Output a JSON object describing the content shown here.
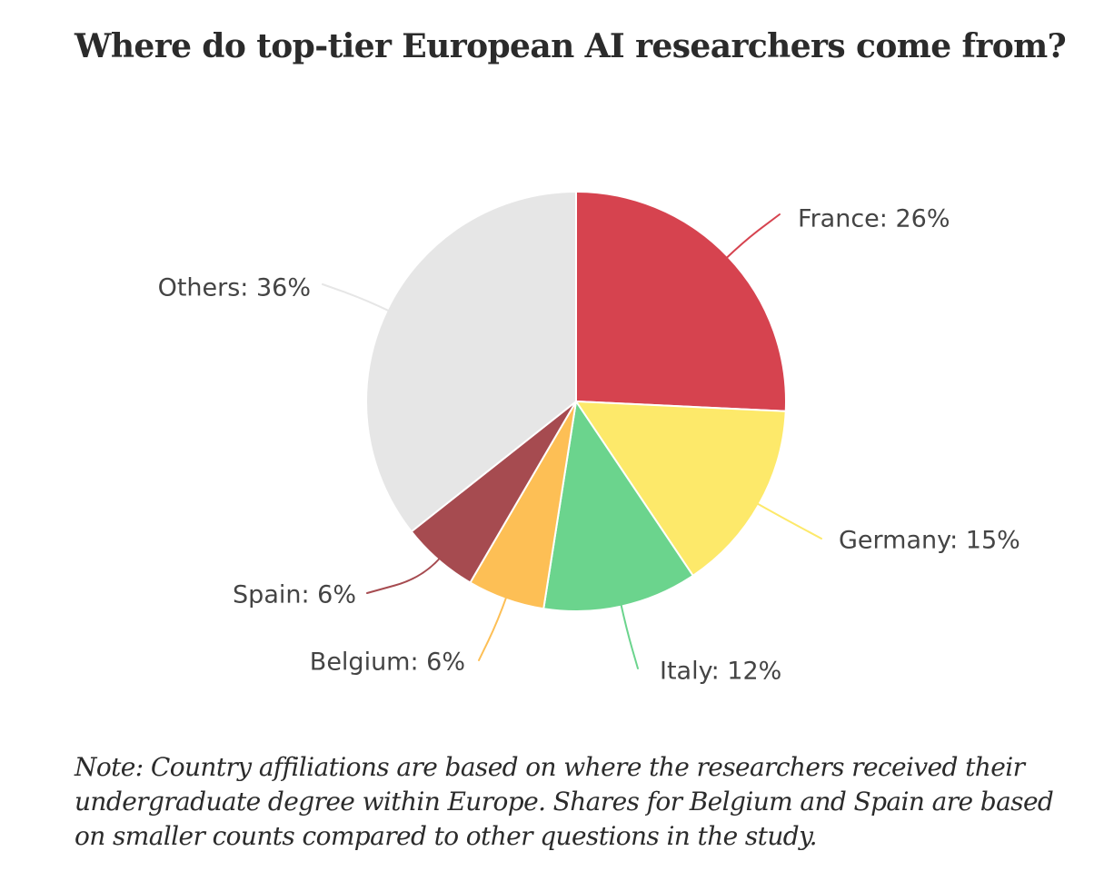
{
  "title": "Where do top-tier European AI researchers come from?",
  "note": "Note: Country affiliations are based on where the researchers received their undergraduate degree within Europe. Shares for Belgium and Spain are based on smaller counts compared to other questions in the study.",
  "chart_data": {
    "type": "pie",
    "start": "12 o'clock, clockwise",
    "slices": [
      {
        "name": "France",
        "value": 26,
        "label": "France: 26%",
        "color": "#d6434f"
      },
      {
        "name": "Germany",
        "value": 15,
        "label": "Germany: 15%",
        "color": "#fde96a"
      },
      {
        "name": "Italy",
        "value": 12,
        "label": "Italy: 12%",
        "color": "#6bd48d"
      },
      {
        "name": "Belgium",
        "value": 6,
        "label": "Belgium: 6%",
        "color": "#fdbf55"
      },
      {
        "name": "Spain",
        "value": 6,
        "label": "Spain: 6%",
        "color": "#a64b50"
      },
      {
        "name": "Others",
        "value": 36,
        "label": "Others: 36%",
        "color": "#e6e6e6"
      }
    ]
  }
}
